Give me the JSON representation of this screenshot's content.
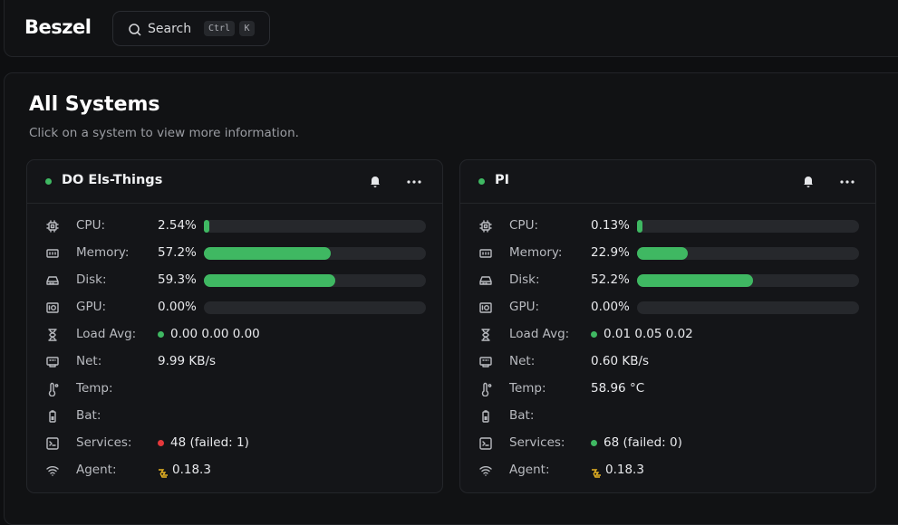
{
  "header": {
    "logo": "Beszel",
    "search": {
      "placeholder": "Search",
      "keys": [
        "Ctrl",
        "K"
      ]
    }
  },
  "page": {
    "title": "All Systems",
    "subtitle": "Click on a system to view more information."
  },
  "meter": {
    "range": [
      0,
      100
    ],
    "color": "#3fb862",
    "track": "#26282c"
  },
  "systems": [
    {
      "name": "DO Els-Things",
      "status_color": "#3fb862",
      "rows": [
        {
          "label": "CPU:",
          "text": "2.54%",
          "bar": 2.54
        },
        {
          "label": "Memory:",
          "text": "57.2%",
          "bar": 57.2
        },
        {
          "label": "Disk:",
          "text": "59.3%",
          "bar": 59.3
        },
        {
          "label": "GPU:",
          "text": "0.00%",
          "bar": 0
        },
        {
          "label": "Load Avg:",
          "text": "0.00 0.00 0.00",
          "dot": "#3fb862"
        },
        {
          "label": "Net:",
          "text": "9.99 KB/s"
        },
        {
          "label": "Temp:"
        },
        {
          "label": "Bat:"
        },
        {
          "label": "Services:",
          "text": "48 (failed: 1)",
          "dot": "#e5383b"
        },
        {
          "label": "Agent:",
          "text": "0.18.3",
          "agent": "#e8b422"
        }
      ]
    },
    {
      "name": "PI",
      "status_color": "#3fb862",
      "rows": [
        {
          "label": "CPU:",
          "text": "0.13%",
          "bar": 0.13
        },
        {
          "label": "Memory:",
          "text": "22.9%",
          "bar": 22.9
        },
        {
          "label": "Disk:",
          "text": "52.2%",
          "bar": 52.2
        },
        {
          "label": "GPU:",
          "text": "0.00%",
          "bar": 0
        },
        {
          "label": "Load Avg:",
          "text": "0.01 0.05 0.02",
          "dot": "#3fb862"
        },
        {
          "label": "Net:",
          "text": "0.60 KB/s"
        },
        {
          "label": "Temp:",
          "text": "58.96 °C"
        },
        {
          "label": "Bat:"
        },
        {
          "label": "Services:",
          "text": "68 (failed: 0)",
          "dot": "#3fb862"
        },
        {
          "label": "Agent:",
          "text": "0.18.3",
          "agent": "#e8b422"
        }
      ]
    }
  ]
}
